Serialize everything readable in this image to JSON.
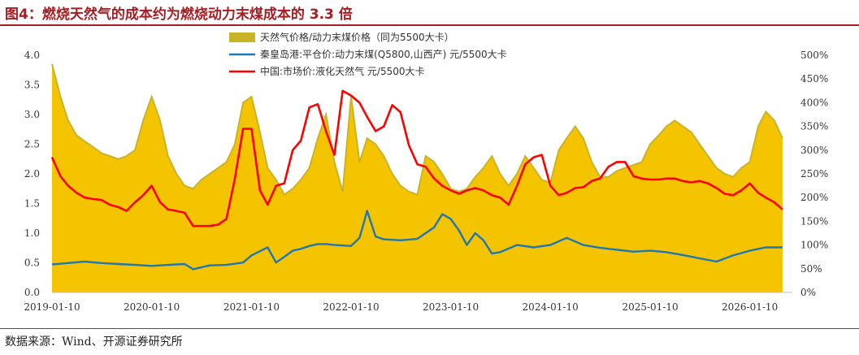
{
  "figure": {
    "title": "图4：燃烧天然气的成本约为燃烧动力末煤成本的 3.3 倍",
    "source": "数据来源：Wind、开源证券研究所"
  },
  "colors": {
    "area": "#f5c400",
    "area_top": "#c9b327",
    "coal": "#1f77b4",
    "lng": "#ff0000",
    "title": "#a51e23"
  },
  "chart_data": {
    "type": "line",
    "x_tick_labels": [
      "2019-01-10",
      "2020-01-10",
      "2021-01-10",
      "2022-01-10",
      "2023-01-10",
      "2024-01-10",
      "2025-01-10",
      "2026-01-10"
    ],
    "left_axis": {
      "ylim": [
        0,
        4
      ],
      "ticks": [
        "0.0",
        "0.5",
        "1.0",
        "1.5",
        "2.0",
        "2.5",
        "3.0",
        "3.5",
        "4.0"
      ]
    },
    "right_axis": {
      "ylim": [
        0,
        500
      ],
      "ticks": [
        "0%",
        "50%",
        "100%",
        "150%",
        "200%",
        "250%",
        "300%",
        "350%",
        "400%",
        "450%",
        "500%"
      ]
    },
    "legend_position": "top-center",
    "series": [
      {
        "name": "天然气价格/动力末煤价格（同为5500大卡）",
        "type": "area",
        "axis": "left",
        "x": [
          "2019-01-10",
          "2019-02-10",
          "2019-03-10",
          "2019-04-10",
          "2019-05-10",
          "2019-06-10",
          "2019-07-10",
          "2019-08-10",
          "2019-09-10",
          "2019-10-10",
          "2019-11-10",
          "2019-12-10",
          "2020-01-10",
          "2020-02-10",
          "2020-03-10",
          "2020-04-10",
          "2020-05-10",
          "2020-06-10",
          "2020-07-10",
          "2020-08-10",
          "2020-09-10",
          "2020-10-10",
          "2020-11-10",
          "2020-12-10",
          "2021-01-10",
          "2021-02-10",
          "2021-03-10",
          "2021-04-10",
          "2021-05-10",
          "2021-06-10",
          "2021-07-10",
          "2021-08-10",
          "2021-09-10",
          "2021-10-10",
          "2021-11-10",
          "2021-12-10",
          "2022-01-10",
          "2022-02-10",
          "2022-03-10",
          "2022-04-10",
          "2022-05-10",
          "2022-06-10",
          "2022-07-10",
          "2022-08-10",
          "2022-09-10",
          "2022-10-10",
          "2022-11-10",
          "2022-12-10",
          "2023-01-10",
          "2023-02-10",
          "2023-03-10",
          "2023-04-10",
          "2023-05-10",
          "2023-06-10",
          "2023-07-10",
          "2023-08-10",
          "2023-09-10",
          "2023-10-10",
          "2023-11-10",
          "2023-12-10",
          "2024-01-10",
          "2024-02-10",
          "2024-03-10",
          "2024-04-10",
          "2024-05-10",
          "2024-06-10",
          "2024-07-10",
          "2024-08-10",
          "2024-09-10",
          "2024-10-10",
          "2024-11-10",
          "2024-12-10",
          "2025-01-10",
          "2025-02-10",
          "2025-03-10",
          "2025-04-10",
          "2025-05-10",
          "2025-06-10",
          "2025-07-10",
          "2025-08-10",
          "2025-09-10",
          "2025-10-10",
          "2025-11-10",
          "2025-12-10",
          "2026-01-10",
          "2026-02-10",
          "2026-03-10",
          "2026-04-10",
          "2026-05-10"
        ],
        "values": [
          3.85,
          3.3,
          2.9,
          2.65,
          2.55,
          2.45,
          2.35,
          2.3,
          2.25,
          2.3,
          2.4,
          2.9,
          3.3,
          2.9,
          2.3,
          2.0,
          1.8,
          1.75,
          1.9,
          2.0,
          2.1,
          2.2,
          2.5,
          3.2,
          3.3,
          2.7,
          2.1,
          1.9,
          1.65,
          1.75,
          1.9,
          2.1,
          2.6,
          3.0,
          2.2,
          1.7,
          3.3,
          2.2,
          2.6,
          2.5,
          2.3,
          2.0,
          1.8,
          1.7,
          1.65,
          2.3,
          2.2,
          2.0,
          1.75,
          1.7,
          1.75,
          1.95,
          2.1,
          2.3,
          2.0,
          1.8,
          2.0,
          2.3,
          2.1,
          1.9,
          1.85,
          2.4,
          2.6,
          2.8,
          2.6,
          2.2,
          1.95,
          1.95,
          2.05,
          2.1,
          2.15,
          2.2,
          2.5,
          2.65,
          2.8,
          2.9,
          2.8,
          2.7,
          2.5,
          2.3,
          2.1,
          2.0,
          1.95,
          2.1,
          2.2,
          2.8,
          3.05,
          2.9,
          2.6
        ]
      },
      {
        "name": "秦皇岛港:平仓价:动力末煤(Q5800,山西产) 元/5500大卡",
        "type": "line",
        "axis": "right",
        "x": [
          "2019-01-10",
          "2019-03-10",
          "2019-05-10",
          "2019-07-10",
          "2019-09-10",
          "2019-11-10",
          "2020-01-10",
          "2020-03-10",
          "2020-05-10",
          "2020-06-10",
          "2020-08-10",
          "2020-10-10",
          "2020-12-10",
          "2021-01-10",
          "2021-03-10",
          "2021-04-10",
          "2021-05-10",
          "2021-06-10",
          "2021-07-10",
          "2021-08-10",
          "2021-09-10",
          "2021-10-10",
          "2021-11-10",
          "2022-01-10",
          "2022-02-10",
          "2022-03-10",
          "2022-04-10",
          "2022-05-10",
          "2022-07-10",
          "2022-09-10",
          "2022-10-10",
          "2022-11-10",
          "2022-12-10",
          "2023-01-10",
          "2023-02-10",
          "2023-03-10",
          "2023-04-10",
          "2023-05-10",
          "2023-06-10",
          "2023-07-10",
          "2023-09-10",
          "2023-11-10",
          "2024-01-10",
          "2024-03-10",
          "2024-05-10",
          "2024-07-10",
          "2024-09-10",
          "2024-11-10",
          "2025-01-10",
          "2025-03-10",
          "2025-05-10",
          "2025-07-10",
          "2025-09-10",
          "2025-11-10",
          "2026-01-10",
          "2026-03-10",
          "2026-05-10"
        ],
        "values": [
          59,
          62,
          65,
          62,
          60,
          58,
          56,
          58,
          60,
          49,
          57,
          58,
          63,
          78,
          95,
          63,
          75,
          88,
          92,
          98,
          102,
          102,
          100,
          98,
          115,
          172,
          118,
          112,
          110,
          113,
          125,
          137,
          165,
          155,
          130,
          100,
          125,
          110,
          82,
          85,
          100,
          95,
          100,
          115,
          100,
          94,
          90,
          86,
          88,
          85,
          79,
          72,
          65,
          78,
          88,
          95,
          95
        ]
      },
      {
        "name": "中国:市场价:液化天然气 元/5500大卡",
        "type": "line",
        "axis": "right",
        "x": [
          "2019-01-10",
          "2019-02-10",
          "2019-03-10",
          "2019-04-10",
          "2019-05-10",
          "2019-06-10",
          "2019-07-10",
          "2019-08-10",
          "2019-09-10",
          "2019-10-10",
          "2019-11-10",
          "2019-12-10",
          "2020-01-10",
          "2020-02-10",
          "2020-03-10",
          "2020-04-10",
          "2020-05-10",
          "2020-06-10",
          "2020-07-10",
          "2020-08-10",
          "2020-09-10",
          "2020-10-10",
          "2020-11-10",
          "2020-12-10",
          "2021-01-10",
          "2021-02-10",
          "2021-03-10",
          "2021-04-10",
          "2021-05-10",
          "2021-06-10",
          "2021-07-10",
          "2021-08-10",
          "2021-09-10",
          "2021-10-10",
          "2021-11-10",
          "2021-12-10",
          "2022-01-10",
          "2022-02-10",
          "2022-03-10",
          "2022-04-10",
          "2022-05-10",
          "2022-06-10",
          "2022-07-10",
          "2022-08-10",
          "2022-09-10",
          "2022-10-10",
          "2022-11-10",
          "2022-12-10",
          "2023-01-10",
          "2023-02-10",
          "2023-03-10",
          "2023-04-10",
          "2023-05-10",
          "2023-06-10",
          "2023-07-10",
          "2023-08-10",
          "2023-09-10",
          "2023-10-10",
          "2023-11-10",
          "2023-12-10",
          "2024-01-10",
          "2024-02-10",
          "2024-03-10",
          "2024-04-10",
          "2024-05-10",
          "2024-06-10",
          "2024-07-10",
          "2024-08-10",
          "2024-09-10",
          "2024-10-10",
          "2024-11-10",
          "2024-12-10",
          "2025-01-10",
          "2025-02-10",
          "2025-03-10",
          "2025-04-10",
          "2025-05-10",
          "2025-06-10",
          "2025-07-10",
          "2025-08-10",
          "2025-09-10",
          "2025-10-10",
          "2025-11-10",
          "2025-12-10",
          "2026-01-10",
          "2026-02-10",
          "2026-03-10",
          "2026-04-10",
          "2026-05-10"
        ],
        "values": [
          285,
          245,
          225,
          210,
          200,
          197,
          195,
          185,
          180,
          172,
          190,
          205,
          225,
          190,
          175,
          172,
          168,
          140,
          140,
          140,
          143,
          155,
          240,
          345,
          345,
          215,
          185,
          225,
          230,
          300,
          320,
          390,
          397,
          340,
          290,
          425,
          415,
          400,
          370,
          340,
          350,
          395,
          380,
          310,
          270,
          265,
          240,
          225,
          215,
          208,
          215,
          220,
          215,
          205,
          200,
          185,
          225,
          270,
          285,
          290,
          225,
          205,
          210,
          220,
          222,
          235,
          240,
          265,
          275,
          275,
          245,
          240,
          238,
          238,
          240,
          240,
          235,
          232,
          235,
          230,
          220,
          208,
          205,
          215,
          230,
          210,
          200,
          190,
          175
        ]
      }
    ]
  }
}
